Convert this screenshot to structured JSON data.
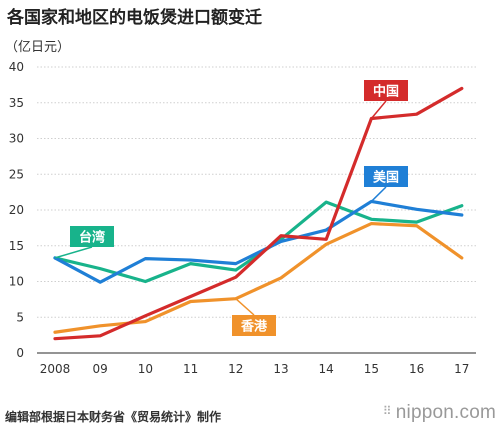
{
  "header": {
    "title": "各国家和地区的电饭煲进口额变迁",
    "unit": "（亿日元）"
  },
  "footer": {
    "source": "编辑部根据日本财务省《贸易统计》制作",
    "brand": "nippon.com",
    "brand_dots": "⠿"
  },
  "chart_data": {
    "type": "line",
    "categories": [
      "2008",
      "09",
      "10",
      "11",
      "12",
      "13",
      "14",
      "15",
      "16",
      "17"
    ],
    "yticks": [
      "0",
      "5",
      "10",
      "15",
      "20",
      "25",
      "30",
      "35",
      "40"
    ],
    "ylim": [
      0,
      40
    ],
    "grid": true,
    "series": [
      {
        "name": "中国",
        "color": "#d42b2b",
        "values": [
          2.0,
          2.4,
          5.2,
          7.9,
          10.6,
          16.4,
          15.9,
          32.8,
          33.4,
          37.0
        ]
      },
      {
        "name": "美国",
        "color": "#1f7fd6",
        "values": [
          13.3,
          9.9,
          13.2,
          13.0,
          12.5,
          15.6,
          17.2,
          21.2,
          20.1,
          19.3
        ]
      },
      {
        "name": "台湾",
        "color": "#18b38b",
        "values": [
          13.3,
          11.8,
          10.0,
          12.5,
          11.6,
          15.9,
          21.1,
          18.7,
          18.3,
          20.6
        ]
      },
      {
        "name": "香港",
        "color": "#f0922b",
        "values": [
          2.9,
          3.8,
          4.4,
          7.2,
          7.6,
          10.5,
          15.2,
          18.1,
          17.8,
          13.3
        ]
      }
    ]
  }
}
